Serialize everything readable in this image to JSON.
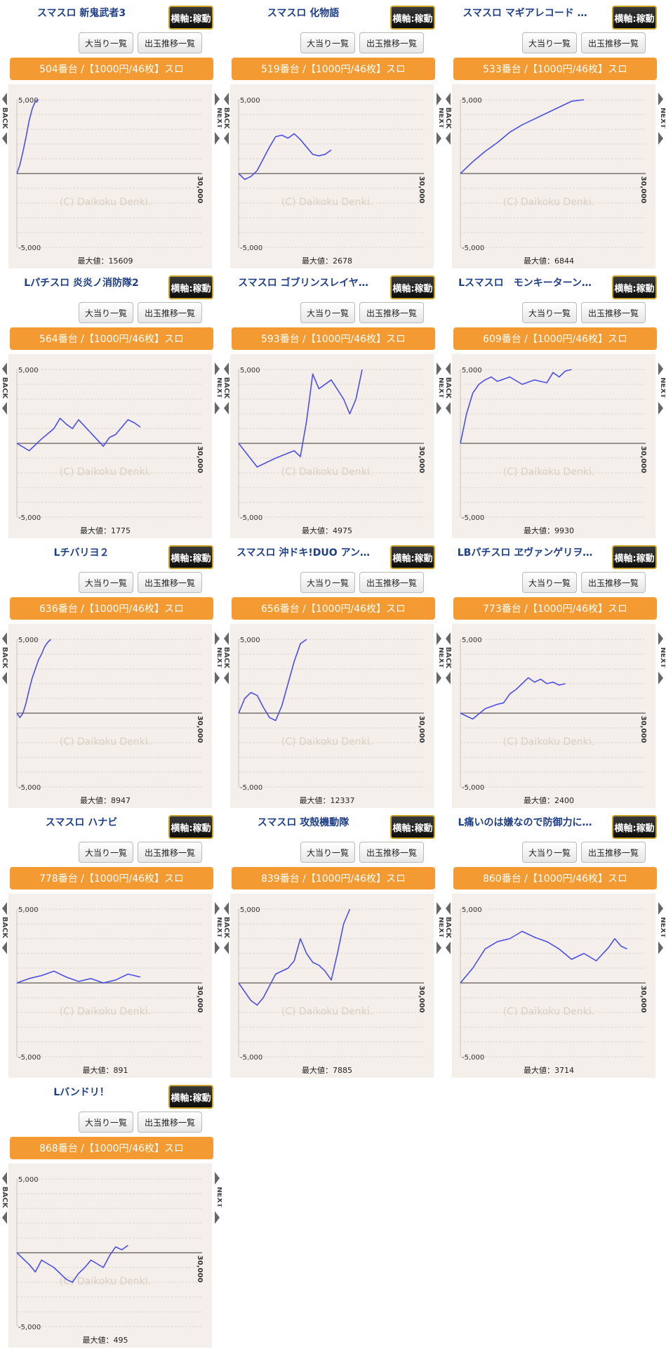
{
  "labels": {
    "operating_badge": "横軸:稼動",
    "hits_button": "大当り一覧",
    "trend_button": "出玉推移一覧",
    "max_prefix": "最大値："
  },
  "chart_data": [
    {
      "type": "line",
      "title": "スマスロ 新鬼武者3",
      "machine_label": "504番台 /【1000円/46枚】スロ",
      "max_label": "最大値：15609",
      "ylim": [
        -5000,
        5000
      ],
      "yticks": [
        "5,000",
        "-5,000"
      ],
      "x_end_label": "30,000",
      "watermark": "(C) Daikoku Denki.",
      "nav_back": "BACK",
      "nav_next": "NEXT",
      "x": [
        0,
        500,
        1000,
        1500,
        2000,
        2500,
        3000,
        3500
      ],
      "y": [
        0,
        600,
        1500,
        2500,
        3600,
        4400,
        4900,
        5000
      ]
    },
    {
      "type": "line",
      "title": "スマスロ 化物語",
      "machine_label": "519番台 /【1000円/46枚】スロ",
      "max_label": "最大値：2678",
      "ylim": [
        -5000,
        5000
      ],
      "yticks": [
        "5,000",
        "-5,000"
      ],
      "x_end_label": "30,000",
      "watermark": "(C) Daikoku Denki.",
      "nav_back": "BACK",
      "nav_next": "NEXT",
      "x": [
        0,
        1000,
        2000,
        3000,
        4000,
        5000,
        6000,
        7000,
        8000,
        9000,
        10000,
        11000,
        12000,
        13000,
        14000,
        15000
      ],
      "y": [
        0,
        -400,
        -200,
        200,
        1000,
        1800,
        2500,
        2600,
        2400,
        2700,
        2300,
        1800,
        1300,
        1200,
        1300,
        1600
      ]
    },
    {
      "type": "line",
      "title": "スマスロ マギアレコード …",
      "machine_label": "533番台 /【1000円/46枚】スロ",
      "max_label": "最大値：6844",
      "ylim": [
        -5000,
        5000
      ],
      "yticks": [
        "5,000",
        "-5,000"
      ],
      "x_end_label": "30,000",
      "watermark": "(C) Daikoku Denki.",
      "nav_back": "BACK",
      "nav_next": "NEXT",
      "x": [
        0,
        2000,
        4000,
        6000,
        8000,
        10000,
        12000,
        14000,
        16000,
        18000,
        20000
      ],
      "y": [
        0,
        800,
        1500,
        2100,
        2800,
        3300,
        3700,
        4100,
        4500,
        4900,
        5000
      ]
    },
    {
      "type": "line",
      "title": "Lパチスロ 炎炎ノ消防隊2",
      "machine_label": "564番台 /【1000円/46枚】スロ",
      "max_label": "最大値：1775",
      "ylim": [
        -5000,
        5000
      ],
      "yticks": [
        "5,000",
        "-5,000"
      ],
      "x_end_label": "30,000",
      "watermark": "(C) Daikoku Denki.",
      "nav_back": "BACK",
      "nav_next": "NEXT",
      "x": [
        0,
        2000,
        4000,
        6000,
        7000,
        8000,
        9000,
        10000,
        12000,
        14000,
        15000,
        16000,
        18000,
        19000,
        20000
      ],
      "y": [
        0,
        -500,
        300,
        1000,
        1700,
        1300,
        1000,
        1600,
        700,
        -200,
        400,
        600,
        1600,
        1400,
        1100
      ]
    },
    {
      "type": "line",
      "title": "スマスロ ゴブリンスレイヤ…",
      "machine_label": "593番台 /【1000円/46枚】スロ",
      "max_label": "最大値：4975",
      "ylim": [
        -5000,
        5000
      ],
      "yticks": [
        "5,000",
        "-5,000"
      ],
      "x_end_label": "30,000",
      "watermark": "(C) Daikoku Denki.",
      "nav_back": "BACK",
      "nav_next": "NEXT",
      "x": [
        0,
        3000,
        6000,
        9000,
        10000,
        11000,
        12000,
        13000,
        15000,
        17000,
        18000,
        19000,
        20000
      ],
      "y": [
        0,
        -1600,
        -1000,
        -500,
        -900,
        1500,
        4700,
        3700,
        4300,
        3000,
        2000,
        3000,
        5000
      ]
    },
    {
      "type": "line",
      "title": "Lスマスロ　モンキーターン…",
      "machine_label": "609番台 /【1000円/46枚】スロ",
      "max_label": "最大値：9930",
      "ylim": [
        -5000,
        5000
      ],
      "yticks": [
        "5,000",
        "-5,000"
      ],
      "x_end_label": "30,000",
      "watermark": "(C) Daikoku Denki.",
      "nav_back": "BACK",
      "nav_next": "NEXT",
      "x": [
        0,
        1000,
        2000,
        3000,
        4000,
        5000,
        6000,
        8000,
        10000,
        12000,
        14000,
        15000,
        16000,
        17000,
        18000
      ],
      "y": [
        0,
        2000,
        3400,
        4000,
        4300,
        4500,
        4200,
        4500,
        4000,
        4300,
        4100,
        4800,
        4500,
        4900,
        5000
      ]
    },
    {
      "type": "line",
      "title": "Lチバリヨ２",
      "machine_label": "636番台 /【1000円/46枚】スロ",
      "max_label": "最大値：8947",
      "ylim": [
        -5000,
        5000
      ],
      "yticks": [
        "5,000",
        "-5,000"
      ],
      "x_end_label": "30,000",
      "watermark": "(C) Daikoku Denki.",
      "nav_back": "BACK",
      "nav_next": "NEXT",
      "x": [
        0,
        500,
        1000,
        1500,
        2000,
        2500,
        3000,
        3500,
        4000,
        4500,
        5000,
        5500
      ],
      "y": [
        0,
        -300,
        0,
        700,
        1600,
        2400,
        3000,
        3600,
        4000,
        4500,
        4800,
        5000
      ]
    },
    {
      "type": "line",
      "title": "スマスロ 沖ドキ!DUO アン…",
      "machine_label": "656番台 /【1000円/46枚】スロ",
      "max_label": "最大値：12337",
      "ylim": [
        -5000,
        5000
      ],
      "yticks": [
        "5,000",
        "-5,000"
      ],
      "x_end_label": "30,000",
      "watermark": "(C) Daikoku Denki.",
      "nav_back": "BACK",
      "nav_next": "NEXT",
      "x": [
        0,
        1000,
        2000,
        3000,
        4000,
        5000,
        6000,
        7000,
        8000,
        9000,
        10000,
        11000
      ],
      "y": [
        0,
        1000,
        1400,
        1200,
        400,
        -300,
        -500,
        500,
        2000,
        3500,
        4700,
        5000
      ]
    },
    {
      "type": "line",
      "title": "LBパチスロ ヱヴァンゲリヲ…",
      "machine_label": "773番台 /【1000円/46枚】スロ",
      "max_label": "最大値：2400",
      "ylim": [
        -5000,
        5000
      ],
      "yticks": [
        "5,000",
        "-5,000"
      ],
      "x_end_label": "30,000",
      "watermark": "(C) Daikoku Denki.",
      "nav_back": "BACK",
      "nav_next": "NEXT",
      "x": [
        0,
        2000,
        4000,
        6000,
        7000,
        8000,
        9000,
        10000,
        11000,
        12000,
        13000,
        14000,
        15000,
        16000,
        17000
      ],
      "y": [
        0,
        -400,
        300,
        600,
        700,
        1300,
        1600,
        2000,
        2400,
        2100,
        2300,
        2000,
        2100,
        1900,
        2000
      ]
    },
    {
      "type": "line",
      "title": "スマスロ ハナビ",
      "machine_label": "778番台 /【1000円/46枚】スロ",
      "max_label": "最大値：891",
      "ylim": [
        -5000,
        5000
      ],
      "yticks": [
        "5,000",
        "-5,000"
      ],
      "x_end_label": "30,000",
      "watermark": "(C) Daikoku Denki.",
      "nav_back": "BACK",
      "nav_next": "NEXT",
      "x": [
        0,
        2000,
        4000,
        6000,
        8000,
        10000,
        12000,
        14000,
        16000,
        18000,
        20000
      ],
      "y": [
        0,
        300,
        500,
        800,
        400,
        100,
        300,
        0,
        200,
        600,
        400
      ]
    },
    {
      "type": "line",
      "title": "スマスロ 攻殻機動隊",
      "machine_label": "839番台 /【1000円/46枚】スロ",
      "max_label": "最大値：7885",
      "ylim": [
        -5000,
        5000
      ],
      "yticks": [
        "5,000",
        "-5,000"
      ],
      "x_end_label": "30,000",
      "watermark": "(C) Daikoku Denki.",
      "nav_back": "BACK",
      "nav_next": "NEXT",
      "x": [
        0,
        2000,
        3000,
        4000,
        6000,
        8000,
        9000,
        10000,
        11000,
        12000,
        13000,
        14000,
        15000,
        16000,
        17000,
        18000
      ],
      "y": [
        0,
        -1200,
        -1500,
        -1000,
        600,
        1000,
        1500,
        3000,
        2000,
        1400,
        1200,
        800,
        200,
        2000,
        4000,
        5000
      ]
    },
    {
      "type": "line",
      "title": "L痛いのは嫌なので防御力に…",
      "machine_label": "860番台 /【1000円/46枚】スロ",
      "max_label": "最大値：3714",
      "ylim": [
        -5000,
        5000
      ],
      "yticks": [
        "5,000",
        "-5,000"
      ],
      "x_end_label": "30,000",
      "watermark": "(C) Daikoku Denki.",
      "nav_back": "BACK",
      "nav_next": "NEXT",
      "x": [
        0,
        2000,
        4000,
        6000,
        8000,
        10000,
        12000,
        14000,
        16000,
        18000,
        20000,
        22000,
        24000,
        25000,
        26000,
        27000
      ],
      "y": [
        0,
        1000,
        2300,
        2800,
        3000,
        3500,
        3100,
        2800,
        2300,
        1600,
        2000,
        1500,
        2400,
        3000,
        2500,
        2300
      ]
    },
    {
      "type": "line",
      "title": "Lバンドリ！",
      "machine_label": "868番台 /【1000円/46枚】スロ",
      "max_label": "最大値：495",
      "ylim": [
        -5000,
        5000
      ],
      "yticks": [
        "5,000",
        "-5,000"
      ],
      "x_end_label": "30,000",
      "watermark": "(C) Daikoku Denki.",
      "nav_back": "BACK",
      "nav_next": "NEXT",
      "x": [
        0,
        2000,
        3000,
        4000,
        6000,
        8000,
        9000,
        10000,
        11000,
        12000,
        14000,
        15000,
        16000,
        17000,
        18000
      ],
      "y": [
        0,
        -800,
        -1300,
        -500,
        -1000,
        -1800,
        -2000,
        -1400,
        -1000,
        -500,
        -1000,
        -200,
        400,
        200,
        500
      ]
    }
  ]
}
